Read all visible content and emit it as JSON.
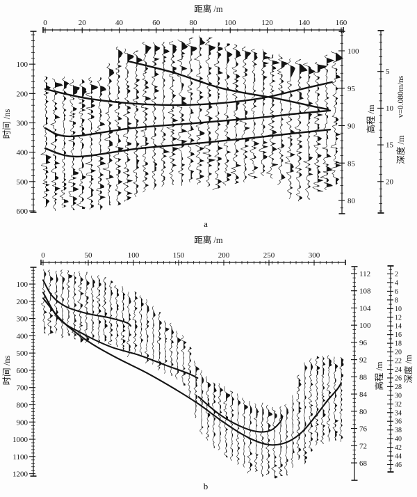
{
  "figure": {
    "background": "#fdfdfd",
    "ink": "#141414",
    "description": "Two ground-penetrating-radar wiggle-trace profiles with interpreted horizon curves"
  },
  "chart_data": [
    {
      "id": "a",
      "type": "line",
      "caption": "a",
      "x_axis": {
        "title": "距离 /m",
        "min": 0,
        "max": 160,
        "ticks": [
          0,
          20,
          40,
          60,
          80,
          100,
          120,
          140,
          160
        ]
      },
      "time_axis": {
        "title": "时间 /ns",
        "min": 0,
        "max": 600,
        "ticks": [
          100,
          200,
          300,
          400,
          500,
          600
        ]
      },
      "elevation_axis": {
        "title": "高程 /m",
        "ticks": [
          100,
          95,
          90,
          85,
          80
        ]
      },
      "depth_axis": {
        "title": "深度 /m",
        "velocity_label": "v=0.080m/ns",
        "ticks": [
          5,
          10,
          15,
          20
        ]
      },
      "traces": {
        "count": 33,
        "top_envelope": [
          [
            0,
            147
          ],
          [
            5,
            149
          ],
          [
            10,
            147
          ],
          [
            15,
            151
          ],
          [
            20,
            147
          ],
          [
            25,
            148
          ],
          [
            30,
            146
          ],
          [
            33,
            120
          ],
          [
            35,
            95
          ],
          [
            37,
            71
          ],
          [
            39,
            35
          ],
          [
            42,
            40
          ],
          [
            44,
            43
          ],
          [
            49,
            55
          ],
          [
            54,
            26
          ],
          [
            59,
            30
          ],
          [
            64,
            20
          ],
          [
            69,
            25
          ],
          [
            74,
            18
          ],
          [
            79,
            12
          ],
          [
            83,
            2
          ],
          [
            86,
            8
          ],
          [
            90,
            14
          ],
          [
            93,
            24
          ],
          [
            98,
            33
          ],
          [
            103,
            28
          ],
          [
            108,
            36
          ],
          [
            113,
            45
          ],
          [
            118,
            55
          ],
          [
            123,
            64
          ],
          [
            128,
            71
          ],
          [
            133,
            76
          ],
          [
            137,
            85
          ],
          [
            141,
            96
          ],
          [
            144,
            104
          ],
          [
            147,
            88
          ],
          [
            150,
            70
          ],
          [
            153,
            60
          ],
          [
            157,
            52
          ]
        ],
        "bottom_envelope": [
          [
            0,
            600
          ],
          [
            12,
            600
          ],
          [
            24,
            596
          ],
          [
            33,
            588
          ],
          [
            40,
            578
          ],
          [
            47,
            562
          ],
          [
            54,
            542
          ],
          [
            61,
            528
          ],
          [
            68,
            515
          ],
          [
            75,
            508
          ],
          [
            82,
            505
          ],
          [
            88,
            512
          ],
          [
            94,
            520
          ],
          [
            100,
            518
          ],
          [
            106,
            510
          ],
          [
            112,
            498
          ],
          [
            118,
            488
          ],
          [
            124,
            492
          ],
          [
            128,
            520
          ],
          [
            132,
            555
          ],
          [
            136,
            562
          ],
          [
            142,
            558
          ],
          [
            147,
            545
          ],
          [
            152,
            525
          ],
          [
            157,
            520
          ]
        ]
      },
      "horizons": [
        {
          "name": "horizon-a1",
          "points": [
            [
              45,
              90
            ],
            [
              70,
              130
            ],
            [
              96,
              183
            ],
            [
              126,
              218
            ],
            [
              145,
              244
            ],
            [
              153,
              254
            ]
          ]
        },
        {
          "name": "horizon-a2",
          "points": [
            [
              0,
              185
            ],
            [
              24,
              218
            ],
            [
              55,
              237
            ],
            [
              85,
              237
            ],
            [
              115,
              218
            ],
            [
              137,
              187
            ],
            [
              155,
              161
            ]
          ]
        },
        {
          "name": "horizon-a3",
          "points": [
            [
              0,
              318
            ],
            [
              13,
              346
            ],
            [
              47,
              318
            ],
            [
              81,
              301
            ],
            [
              111,
              285
            ],
            [
              137,
              268
            ],
            [
              154,
              258
            ]
          ]
        },
        {
          "name": "horizon-a4",
          "points": [
            [
              0,
              387
            ],
            [
              17,
              415
            ],
            [
              51,
              387
            ],
            [
              85,
              368
            ],
            [
              115,
              349
            ],
            [
              137,
              334
            ],
            [
              154,
              323
            ]
          ]
        }
      ]
    },
    {
      "id": "b",
      "type": "line",
      "caption": "b",
      "x_axis": {
        "title": "距离 /m",
        "min": 0,
        "max": 330,
        "ticks": [
          0,
          50,
          100,
          150,
          200,
          250,
          300
        ]
      },
      "time_axis": {
        "title": "时间 /ns",
        "min": 0,
        "max": 1200,
        "ticks": [
          100,
          200,
          300,
          400,
          500,
          600,
          700,
          800,
          900,
          1000,
          1100,
          1200
        ]
      },
      "elevation_axis": {
        "title": "高程 /m",
        "ticks": [
          112,
          108,
          104,
          100,
          96,
          92,
          88,
          84,
          80,
          76,
          72,
          68
        ]
      },
      "depth_axis": {
        "title": "深度 /m",
        "ticks": [
          2,
          4,
          6,
          8,
          10,
          12,
          14,
          16,
          18,
          20,
          22,
          24,
          26,
          28,
          30,
          32,
          34,
          36,
          38,
          40,
          42,
          44,
          46
        ]
      },
      "traces": {
        "count": 50,
        "top_envelope": [
          [
            0,
            12
          ],
          [
            22,
            20
          ],
          [
            45,
            32
          ],
          [
            68,
            60
          ],
          [
            79,
            93
          ],
          [
            91,
            125
          ],
          [
            102,
            153
          ],
          [
            114,
            190
          ],
          [
            125,
            250
          ],
          [
            137,
            311
          ],
          [
            148,
            359
          ],
          [
            160,
            432
          ],
          [
            171,
            584
          ],
          [
            183,
            650
          ],
          [
            195,
            674
          ],
          [
            206,
            702
          ],
          [
            218,
            738
          ],
          [
            229,
            770
          ],
          [
            241,
            795
          ],
          [
            252,
            807
          ],
          [
            260,
            815
          ],
          [
            268,
            807
          ],
          [
            275,
            754
          ],
          [
            283,
            633
          ],
          [
            291,
            545
          ],
          [
            298,
            520
          ],
          [
            310,
            512
          ],
          [
            322,
            520
          ],
          [
            330,
            524
          ]
        ],
        "bottom_envelope": [
          [
            0,
            391
          ],
          [
            22,
            407
          ],
          [
            45,
            424
          ],
          [
            68,
            452
          ],
          [
            91,
            504
          ],
          [
            114,
            553
          ],
          [
            137,
            613
          ],
          [
            160,
            714
          ],
          [
            171,
            944
          ],
          [
            183,
            1008
          ],
          [
            194,
            1077
          ],
          [
            206,
            1117
          ],
          [
            218,
            1166
          ],
          [
            229,
            1194
          ],
          [
            241,
            1218
          ],
          [
            252,
            1232
          ],
          [
            260,
            1232
          ],
          [
            268,
            1218
          ],
          [
            275,
            1190
          ],
          [
            283,
            1140
          ],
          [
            291,
            1129
          ],
          [
            298,
            1057
          ],
          [
            312,
            1024
          ],
          [
            322,
            1012
          ],
          [
            330,
            1008
          ]
        ]
      },
      "horizons": [
        {
          "name": "horizon-b1",
          "points": [
            [
              0,
              77
            ],
            [
              10,
              169
            ],
            [
              25,
              230
            ],
            [
              48,
              270
            ],
            [
              72,
              294
            ],
            [
              92,
              323
            ],
            [
              97,
              343
            ]
          ]
        },
        {
          "name": "horizon-b2",
          "points": [
            [
              0,
              149
            ],
            [
              18,
              303
            ],
            [
              45,
              391
            ],
            [
              75,
              464
            ],
            [
              106,
              512
            ],
            [
              137,
              573
            ],
            [
              160,
              617
            ],
            [
              171,
              645
            ]
          ]
        },
        {
          "name": "horizon-b3",
          "points": [
            [
              172,
              754
            ],
            [
              195,
              855
            ],
            [
              218,
              924
            ],
            [
              237,
              956
            ],
            [
              252,
              948
            ],
            [
              262,
              903
            ],
            [
              265,
              867
            ]
          ]
        },
        {
          "name": "horizon-b4",
          "points": [
            [
              0,
              182
            ],
            [
              22,
              319
            ],
            [
              52,
              440
            ],
            [
              83,
              532
            ],
            [
              114,
              613
            ],
            [
              145,
              706
            ],
            [
              172,
              795
            ],
            [
              198,
              895
            ],
            [
              222,
              976
            ],
            [
              241,
              1021
            ],
            [
              256,
              1033
            ],
            [
              272,
              1012
            ],
            [
              287,
              956
            ],
            [
              302,
              863
            ],
            [
              315,
              774
            ],
            [
              325,
              714
            ],
            [
              330,
              674
            ]
          ]
        }
      ]
    }
  ]
}
